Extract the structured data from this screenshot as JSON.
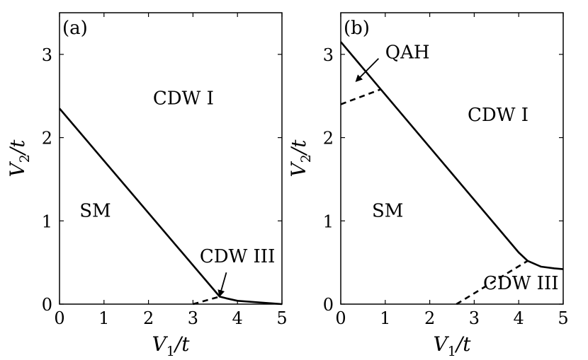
{
  "chart_data": [
    {
      "type": "line",
      "panel_label": "(a)",
      "xlabel": "V_1/t",
      "ylabel": "V_2/t",
      "xlim": [
        0,
        5
      ],
      "ylim": [
        0,
        3.5
      ],
      "xticks": [
        "0",
        "1",
        "2",
        "3",
        "4",
        "5"
      ],
      "yticks": [
        "0",
        "1",
        "2",
        "3"
      ],
      "series": [
        {
          "style": "solid",
          "x": [
            0,
            3.6,
            3.75,
            4.0,
            5.0
          ],
          "y": [
            2.35,
            0.09,
            0.07,
            0.04,
            0.0
          ]
        },
        {
          "style": "dashed",
          "x": [
            3.0,
            3.6
          ],
          "y": [
            0.0,
            0.09
          ]
        }
      ],
      "regions": [
        {
          "text": "CDW I",
          "x": 2.1,
          "y": 2.4
        },
        {
          "text": "SM",
          "x": 0.45,
          "y": 1.05
        },
        {
          "text": "CDW III",
          "x": 3.15,
          "y": 0.5
        }
      ],
      "arrows": [
        {
          "from": [
            3.75,
            0.38
          ],
          "to": [
            3.6,
            0.1
          ]
        }
      ]
    },
    {
      "type": "line",
      "panel_label": "(b)",
      "xlabel": "V_1/t",
      "ylabel": "V_2/t",
      "xlim": [
        0,
        5
      ],
      "ylim": [
        0,
        3.5
      ],
      "xticks": [
        "0",
        "1",
        "2",
        "3",
        "4",
        "5"
      ],
      "yticks": [
        "0",
        "1",
        "2",
        "3"
      ],
      "series": [
        {
          "style": "solid",
          "x": [
            0,
            0.9,
            4.0,
            4.2,
            4.5,
            4.8,
            5.0
          ],
          "y": [
            3.15,
            2.58,
            0.62,
            0.52,
            0.45,
            0.43,
            0.42
          ]
        },
        {
          "style": "dashed",
          "x": [
            0,
            0.9
          ],
          "y": [
            2.4,
            2.58
          ]
        },
        {
          "style": "dashed",
          "x": [
            2.6,
            4.2
          ],
          "y": [
            0.0,
            0.52
          ]
        }
      ],
      "regions": [
        {
          "text": "CDW I",
          "x": 2.85,
          "y": 2.2
        },
        {
          "text": "SM",
          "x": 0.7,
          "y": 1.05
        },
        {
          "text": "CDW III",
          "x": 3.2,
          "y": 0.18
        },
        {
          "text": "QAH",
          "x": 1.0,
          "y": 2.95
        }
      ],
      "arrows": [
        {
          "from": [
            0.85,
            2.95
          ],
          "to": [
            0.35,
            2.68
          ]
        }
      ]
    }
  ]
}
